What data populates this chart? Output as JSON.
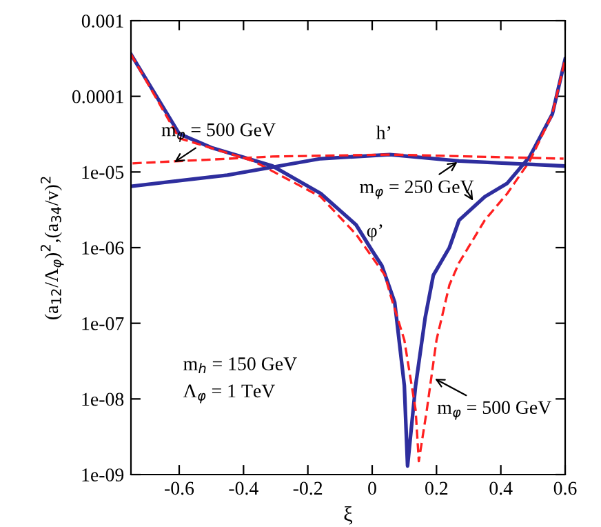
{
  "chart_data": {
    "type": "line",
    "xlabel": "ξ",
    "ylabel": "(a$_{12}$/Λ$_{φ}$)$^{2}$,(a$_{34}$/v)$^{2}$",
    "log": "y",
    "xlim": [
      -0.75,
      0.6
    ],
    "xticks": [
      -0.6,
      -0.4,
      -0.2,
      0,
      0.2,
      0.4,
      0.6
    ],
    "ylim": [
      1e-09,
      0.001
    ],
    "yticks": [
      {
        "value": 1e-09,
        "label": "1e-09"
      },
      {
        "value": 1e-08,
        "label": "1e-08"
      },
      {
        "value": 1e-07,
        "label": "1e-07"
      },
      {
        "value": 1e-06,
        "label": "1e-06"
      },
      {
        "value": 1e-05,
        "label": "1e-05"
      },
      {
        "value": 0.0001,
        "label": "0.0001"
      },
      {
        "value": 0.001,
        "label": "0.001"
      }
    ],
    "grid": false,
    "legend": false,
    "series": [
      {
        "color": "#2e2e9e",
        "line_style": "solid",
        "x": [
          -0.75,
          -0.6,
          -0.5,
          -0.31,
          -0.16,
          -0.05,
          0,
          0.03,
          0.07,
          0.1,
          0.11,
          0.135,
          0.165,
          0.19,
          0.24,
          0.27,
          0.35,
          0.42,
          0.49,
          0.56,
          0.6
        ],
        "values": [
          0.00036,
          3.2e-05,
          2.1e-05,
          1.2e-05,
          5.2e-06,
          2e-06,
          9.1e-07,
          5.8e-07,
          1.9e-07,
          1.5e-08,
          1.3e-09,
          1.5e-08,
          1.2e-07,
          4.3e-07,
          1e-06,
          2.3e-06,
          4.7e-06,
          7.1e-06,
          1.6e-05,
          5.8e-05,
          0.00031
        ]
      },
      {
        "color": "#ff2020",
        "line_style": "dashed",
        "x": [
          -0.75,
          -0.6,
          -0.37,
          -0.16,
          -0.05,
          0.04,
          0.055,
          0.1,
          0.135,
          0.145,
          0.17,
          0.2,
          0.24,
          0.27,
          0.35,
          0.42,
          0.49,
          0.56,
          0.6
        ],
        "values": [
          0.00036,
          2.8e-05,
          1.4e-05,
          4.7e-06,
          1.5e-06,
          4.3e-07,
          2.5e-07,
          6e-08,
          7.2e-09,
          1.5e-09,
          7.2e-09,
          6e-08,
          3.2e-07,
          6.3e-07,
          2.3e-06,
          5.2e-06,
          1.4e-05,
          5.8e-05,
          0.00031
        ]
      },
      {
        "color": "#2e2e9e",
        "line_style": "solid",
        "x": [
          -0.745,
          -0.45,
          -0.16,
          0.055,
          0.27,
          0.595
        ],
        "values": [
          6.5e-06,
          9.1e-06,
          1.5e-05,
          1.7e-05,
          1.4e-05,
          1.2e-05
        ]
      },
      {
        "color": "#ff2020",
        "line_style": "dashed",
        "x": [
          -0.745,
          -0.31,
          0.055,
          0.595
        ],
        "values": [
          1.3e-05,
          1.6e-05,
          1.7e-05,
          1.5e-05
        ]
      }
    ],
    "annotations": [
      {
        "text": "m$_{φ}$ = 500 GeV",
        "x": -0.62,
        "y": 1.3e-05
      },
      {
        "text": "h’",
        "x": 0.03,
        "y": 1.7e-05
      },
      {
        "text": "m$_{φ}$ = 250 GeV",
        "x": 0.27,
        "y": 1.4e-05
      },
      {
        "text": "φ’",
        "x": 0.0,
        "y": 9.1e-07
      },
      "m$_{h}$ = 150 GeV",
      "Λ$_{φ}$ = 1 TeV",
      {
        "text": "m$_{φ}$ = 500 GeV",
        "x": 0.19,
        "y": 1.9e-08
      }
    ]
  }
}
